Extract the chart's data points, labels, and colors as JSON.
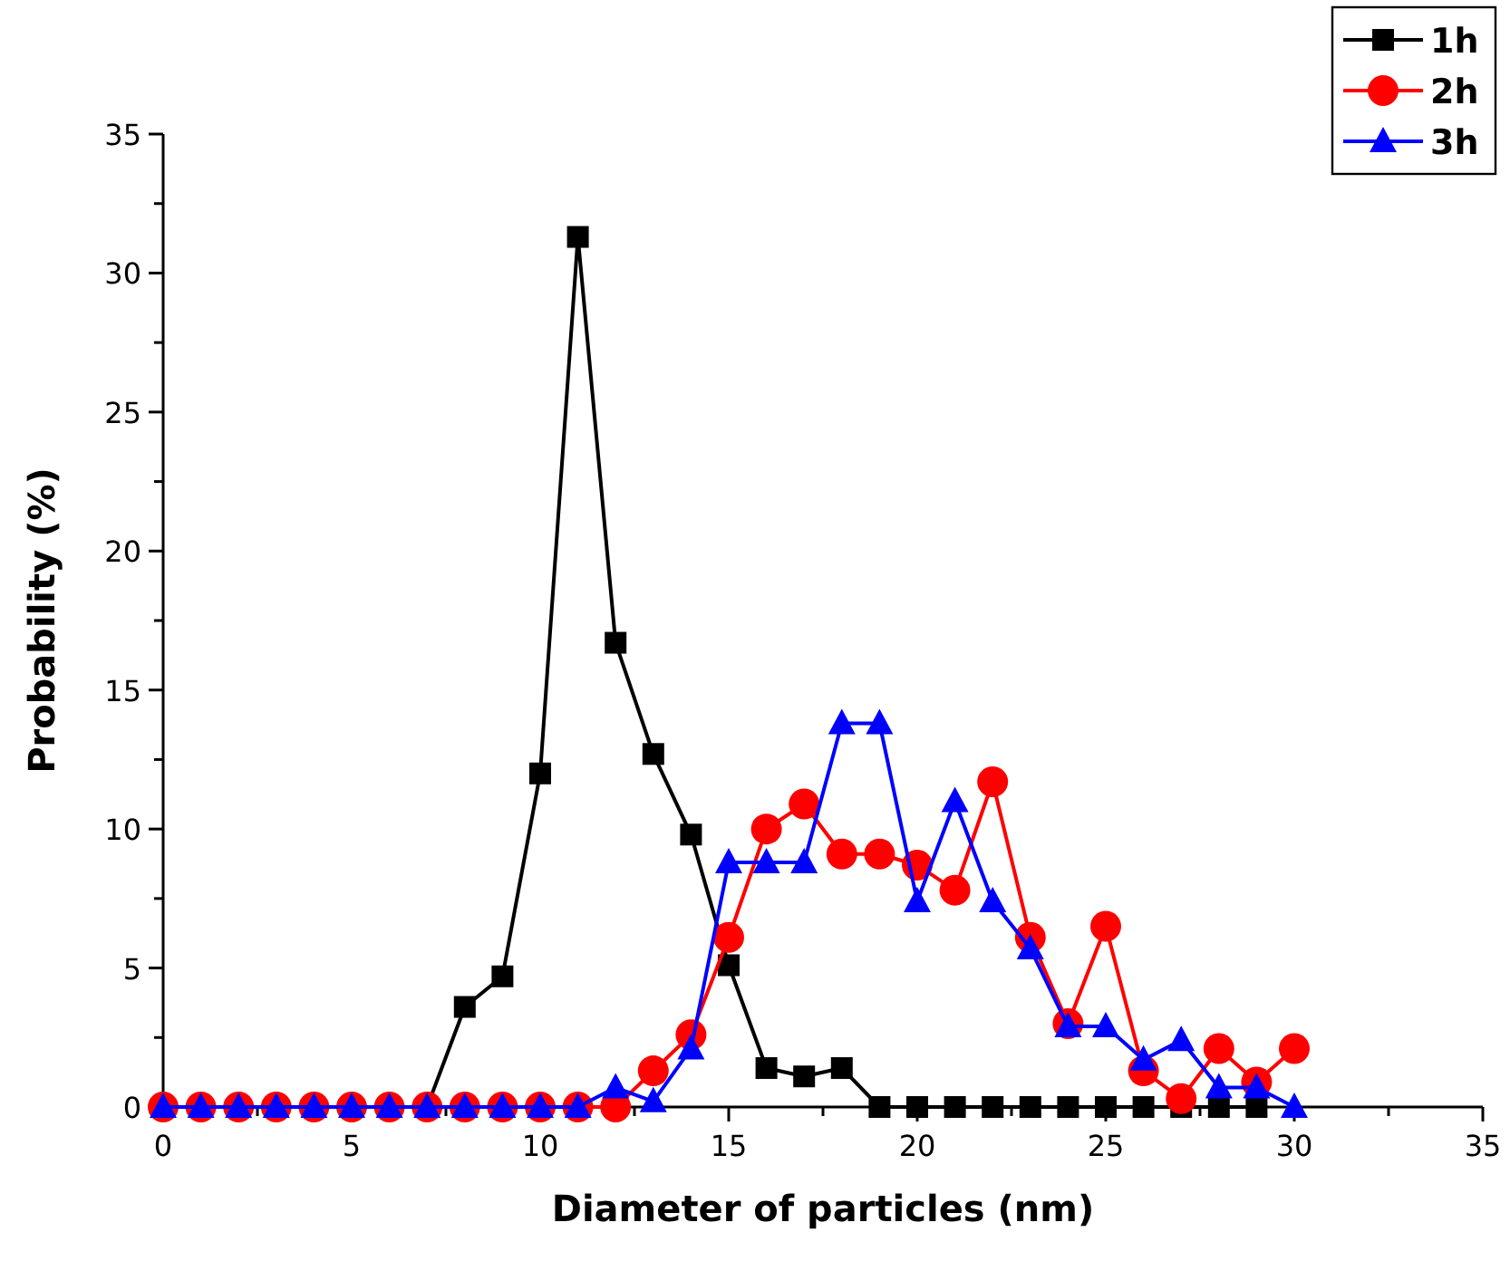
{
  "chart_data": {
    "type": "line",
    "xlabel": "Diameter of particles (nm)",
    "ylabel": "Probability (%)",
    "xlim": [
      0,
      35
    ],
    "xticks": [
      0,
      5,
      10,
      15,
      20,
      25,
      30,
      35
    ],
    "ylim": [
      0,
      35
    ],
    "yticks": [
      0,
      5,
      10,
      15,
      20,
      25,
      30,
      35
    ],
    "grid": false,
    "legend": "top right",
    "line_style": "solid",
    "series": [
      {
        "name": "1h",
        "color": "#000000",
        "marker": "square",
        "x": [
          0,
          1,
          2,
          3,
          4,
          5,
          6,
          7,
          8,
          9,
          10,
          11,
          12,
          13,
          14,
          15,
          16,
          17,
          18,
          19,
          20,
          21,
          22,
          23,
          24,
          25,
          26,
          27,
          28,
          29
        ],
        "values": [
          0,
          0,
          0,
          0,
          0,
          0,
          0,
          0,
          3.6,
          4.7,
          12.0,
          31.3,
          16.7,
          12.7,
          9.8,
          5.1,
          1.4,
          1.1,
          1.4,
          0,
          0,
          0,
          0,
          0,
          0,
          0,
          0,
          0,
          0,
          0
        ]
      },
      {
        "name": "2h",
        "color": "#ff0000",
        "marker": "circle",
        "x": [
          0,
          1,
          2,
          3,
          4,
          5,
          6,
          7,
          8,
          9,
          10,
          11,
          12,
          13,
          14,
          15,
          16,
          17,
          18,
          19,
          20,
          21,
          22,
          23,
          24,
          25,
          26,
          27,
          28,
          29,
          30
        ],
        "values": [
          0,
          0,
          0,
          0,
          0,
          0,
          0,
          0,
          0,
          0,
          0,
          0,
          0,
          1.3,
          2.6,
          6.1,
          10.0,
          10.9,
          9.1,
          9.1,
          8.7,
          7.8,
          11.7,
          6.1,
          3.0,
          6.5,
          1.3,
          0.3,
          2.1,
          0.9,
          2.1
        ]
      },
      {
        "name": "3h",
        "color": "#0000ff",
        "marker": "triangle",
        "x": [
          0,
          1,
          2,
          3,
          4,
          5,
          6,
          7,
          8,
          9,
          10,
          11,
          12,
          13,
          14,
          15,
          16,
          17,
          18,
          19,
          20,
          21,
          22,
          23,
          24,
          25,
          26,
          27,
          28,
          29,
          30
        ],
        "values": [
          0,
          0,
          0,
          0,
          0,
          0,
          0,
          0,
          0,
          0,
          0,
          0,
          0.7,
          0.2,
          2.1,
          8.8,
          8.8,
          8.8,
          13.8,
          13.8,
          7.4,
          11.0,
          7.4,
          5.7,
          2.9,
          2.9,
          1.7,
          2.4,
          0.7,
          0.7,
          0
        ]
      }
    ]
  }
}
